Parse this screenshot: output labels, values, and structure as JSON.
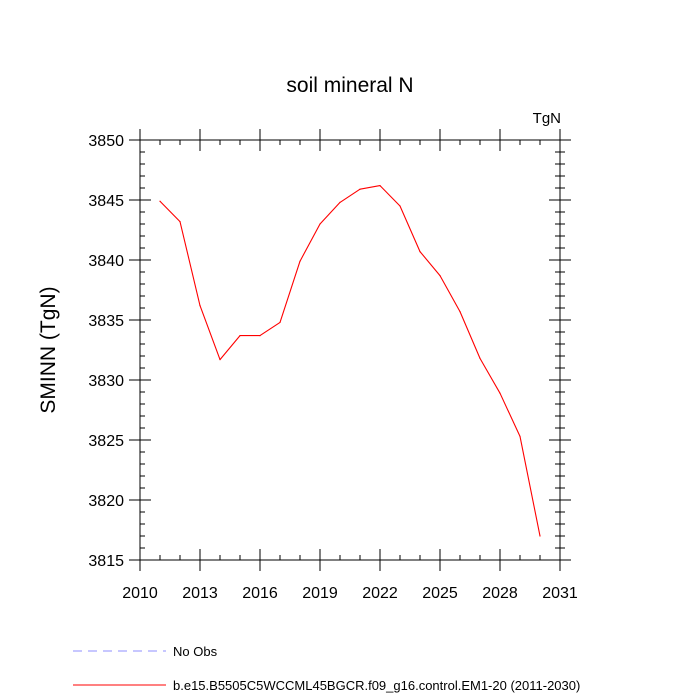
{
  "chart_data": {
    "type": "line",
    "title": "soil mineral N",
    "units_label": "TgN",
    "xlabel": "",
    "ylabel": "SMINN  (TgN)",
    "xlim": [
      2010,
      2031
    ],
    "ylim": [
      3815,
      3850
    ],
    "x_ticks": [
      2010,
      2013,
      2016,
      2019,
      2022,
      2025,
      2028,
      2031
    ],
    "x_minor_step": 1,
    "y_ticks": [
      3815,
      3820,
      3825,
      3830,
      3835,
      3840,
      3845,
      3850
    ],
    "y_minor_step": 1,
    "grid": false,
    "series": [
      {
        "name": "b.e15.B5505C5WCCML45BGCR.f09_g16.control.EM1-20 (2011-2030)",
        "color": "#ff0000",
        "dash": "solid",
        "x": [
          2011,
          2012,
          2013,
          2014,
          2015,
          2016,
          2017,
          2018,
          2019,
          2020,
          2021,
          2022,
          2023,
          2024,
          2025,
          2026,
          2027,
          2028,
          2029,
          2030
        ],
        "values": [
          3844.9,
          3843.2,
          3836.2,
          3831.7,
          3833.7,
          3833.7,
          3834.8,
          3839.9,
          3843.0,
          3844.8,
          3845.9,
          3846.2,
          3844.5,
          3840.7,
          3838.7,
          3835.7,
          3831.8,
          3828.9,
          3825.3,
          3817.0
        ]
      }
    ],
    "legend": [
      {
        "label": "No Obs",
        "color": "#8f8fff",
        "dash": "dashed"
      },
      {
        "label": "b.e15.B5505C5WCCML45BGCR.f09_g16.control.EM1-20 (2011-2030)",
        "color": "#ff0000",
        "dash": "solid"
      }
    ]
  }
}
